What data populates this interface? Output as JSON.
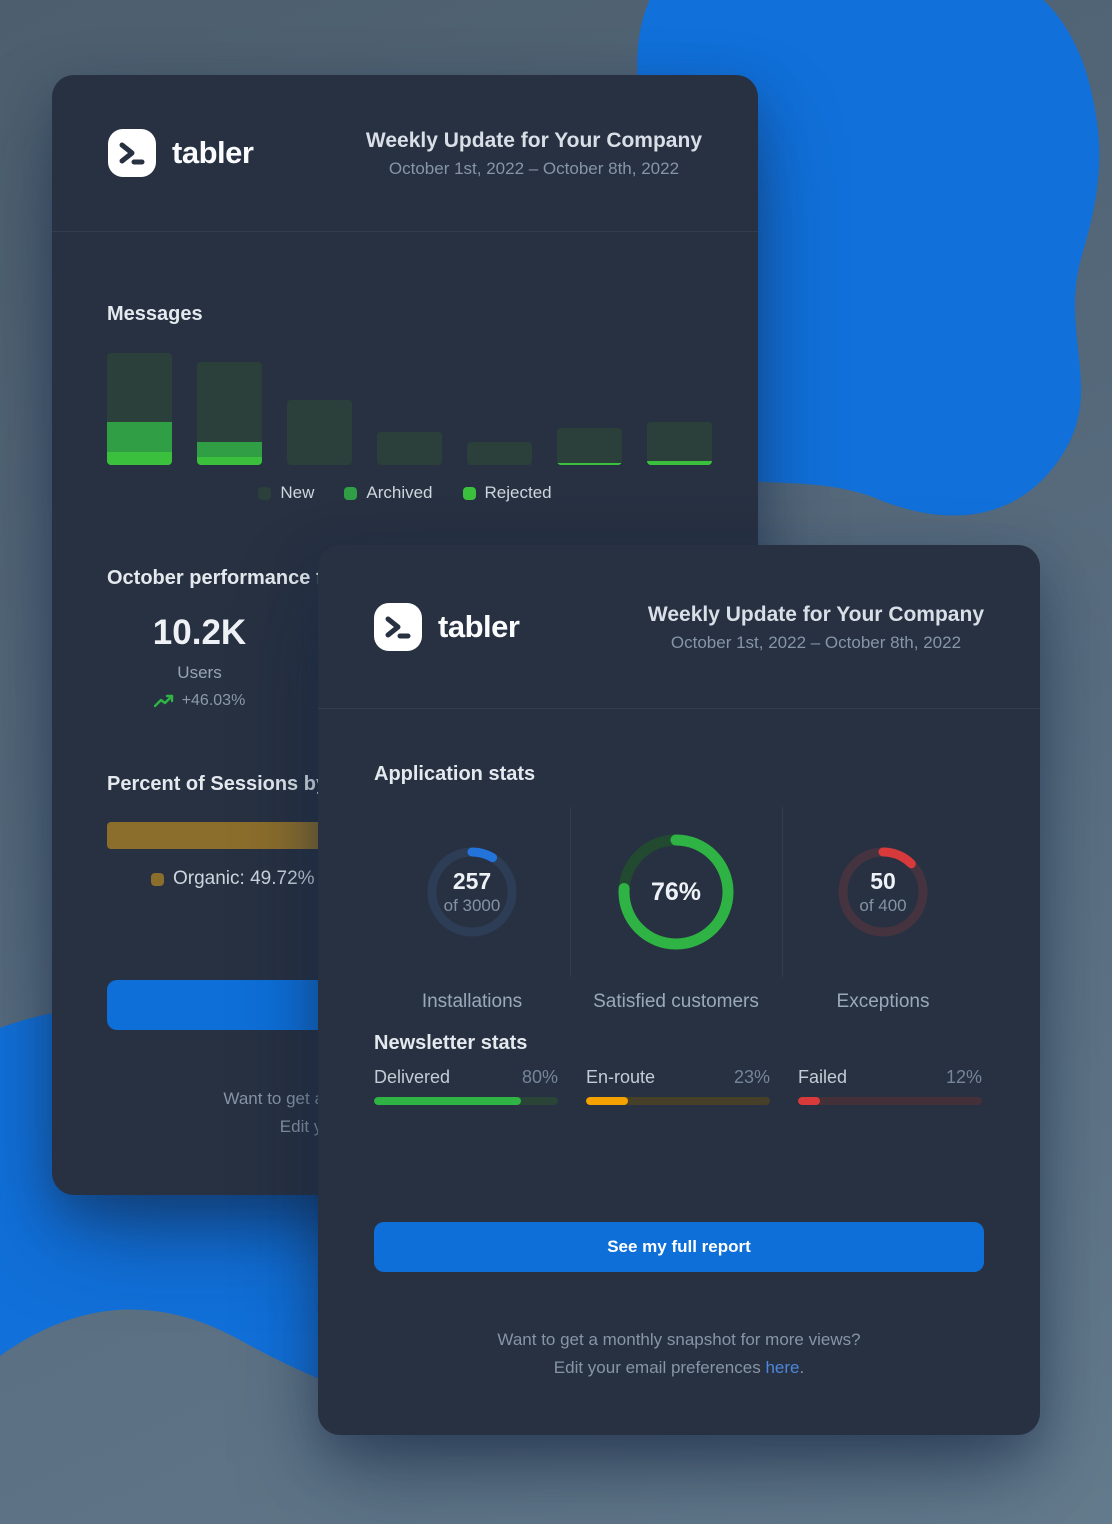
{
  "brand": {
    "name": "tabler"
  },
  "header": {
    "title": "Weekly Update for Your Company",
    "date_range": "October 1st, 2022 – October 8th, 2022"
  },
  "colors": {
    "blob": "#1170d9",
    "card_bg": "#273142",
    "button_blue": "#0e6fd8",
    "link_blue": "#4c87da",
    "green": "#2f9e44",
    "bright_green": "#3bc03e",
    "olive": "#8c6e2c",
    "red": "#d83a3c",
    "orange": "#f5a200"
  },
  "back_card": {
    "messages": {
      "heading": "Messages",
      "legend": [
        {
          "key": "new",
          "label": "New",
          "color": "#2b403b"
        },
        {
          "key": "archived",
          "label": "Archived",
          "color": "#2f9e44"
        },
        {
          "key": "rejected",
          "label": "Rejected",
          "color": "#3bc03e"
        }
      ],
      "bars": [
        {
          "new": 69,
          "archived": 30,
          "rejected": 13
        },
        {
          "new": 80,
          "archived": 15,
          "rejected": 8
        },
        {
          "new": 65,
          "archived": 0,
          "rejected": 0
        },
        {
          "new": 33,
          "archived": 0,
          "rejected": 0
        },
        {
          "new": 23,
          "archived": 0,
          "rejected": 0
        },
        {
          "new": 35,
          "archived": 0,
          "rejected": 2
        },
        {
          "new": 39,
          "archived": 0,
          "rejected": 4
        }
      ]
    },
    "performance": {
      "heading": "October performance fo",
      "value": "10.2K",
      "label": "Users",
      "delta": "+46.03%"
    },
    "sessions": {
      "heading": "Percent of Sessions by C",
      "bar_color": "#8c6e2c",
      "legend_label": "Organic: 49.72%"
    }
  },
  "front_card": {
    "application_stats": {
      "heading": "Application stats",
      "donuts": [
        {
          "value": "257",
          "sub": "of 3000",
          "caption": "Installations",
          "percent": 8.57,
          "color": "#2273da",
          "track": "#2d3d56",
          "size": "small"
        },
        {
          "value": "76%",
          "sub": "",
          "caption": "Satisfied customers",
          "percent": 76,
          "color": "#2eb344",
          "track": "#224a30",
          "size": "large"
        },
        {
          "value": "50",
          "sub": "of 400",
          "caption": "Exceptions",
          "percent": 12.5,
          "color": "#d83a3c",
          "track": "#463340",
          "size": "small"
        }
      ]
    },
    "newsletter_stats": {
      "heading": "Newsletter stats",
      "bars": [
        {
          "label": "Delivered",
          "pct_label": "80%",
          "percent": 80,
          "color": "#2fb344",
          "track": "#2a4537"
        },
        {
          "label": "En-route",
          "pct_label": "23%",
          "percent": 23,
          "color": "#f5a200",
          "track": "#474029"
        },
        {
          "label": "Failed",
          "pct_label": "12%",
          "percent": 12,
          "color": "#d83a3c",
          "track": "#433039"
        }
      ]
    },
    "cta": {
      "label": "See my full report"
    }
  },
  "footer": {
    "line1": "Want to get a monthly snapshot for more views?",
    "line2_prefix": "Edit your email preferences ",
    "link": "here",
    "suffix": "."
  }
}
